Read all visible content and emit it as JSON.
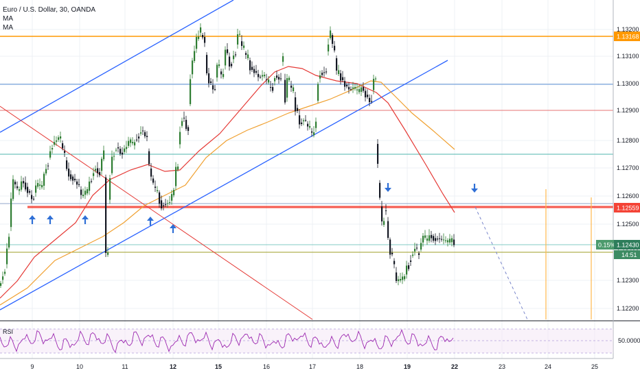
{
  "header": {
    "symbol_line": "Euro / U.S. Dollar, 30, OANDA",
    "indicators": [
      "MA",
      "MA"
    ]
  },
  "colors": {
    "up": "#26a69a",
    "down": "#131722",
    "candle_body_up": "#2e7d32",
    "trend_blue": "#2962ff",
    "red_line": "#e53935",
    "orange_line": "#ff9800",
    "ma_red": "#e53935",
    "ma_orange": "#f0a030",
    "rsi": "#9c27b0",
    "price_tag_green": "#4c9a6c",
    "arrow_blue": "#2f6fd6"
  },
  "price_axis": {
    "ticks": [
      "1.13200",
      "1.13100",
      "1.13000",
      "1.12900",
      "1.12800",
      "1.12700",
      "1.12600",
      "1.12500",
      "1.12400",
      "1.12300",
      "1.12200"
    ],
    "tags": {
      "orange_level": "1.13168",
      "red_level": "1.12559",
      "last_price": "1.12430",
      "change_pct": "0.15%",
      "countdown": "14:51"
    }
  },
  "rsi": {
    "label": "RSI",
    "tick": "50.0000"
  },
  "time_axis": {
    "ticks": [
      "9",
      "10",
      "11",
      "12",
      "15",
      "16",
      "17",
      "18",
      "19",
      "22",
      "23",
      "24",
      "25"
    ]
  },
  "chart_data": {
    "type": "candlestick",
    "title": "Euro / U.S. Dollar, 30, OANDA",
    "ylim": [
      1.1214,
      1.1324
    ],
    "x_ticks": [
      "9",
      "10",
      "11",
      "12",
      "15",
      "16",
      "17",
      "18",
      "19",
      "22",
      "23",
      "24",
      "25"
    ],
    "horizontal_levels": [
      {
        "price": 1.13168,
        "color": "orange"
      },
      {
        "price": 1.12559,
        "color": "red"
      },
      {
        "price": 1.13,
        "color": "blue"
      },
      {
        "price": 1.129,
        "color": "red"
      },
      {
        "price": 1.1275,
        "color": "teal"
      },
      {
        "price": 1.1244,
        "color": "teal"
      },
      {
        "price": 1.1242,
        "color": "olive"
      }
    ],
    "last_price": 1.1243,
    "rsi_level": 50.0
  }
}
